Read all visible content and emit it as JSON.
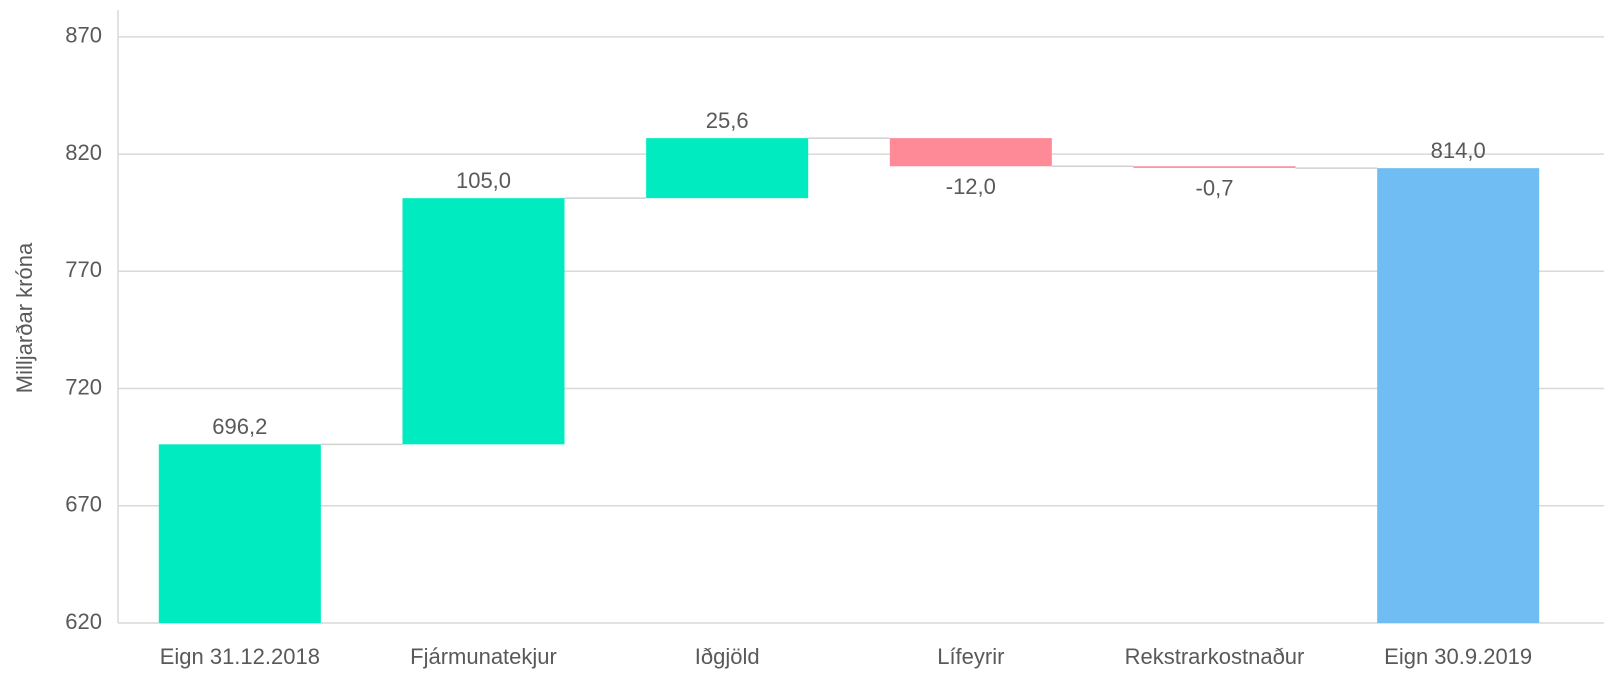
{
  "chart_data": {
    "type": "waterfall",
    "y_label": "Milljarðar króna",
    "categories": [
      "Eign 31.12.2018",
      "Fjármunatekjur",
      "Iðgjöld",
      "Lífeyrir",
      "Rekstrarkostnaður",
      "Eign 30.9.2019"
    ],
    "values": [
      696.2,
      105.0,
      25.6,
      -12.0,
      -0.7,
      814.0
    ],
    "value_labels": [
      "696,2",
      "105,0",
      "25,6",
      "-12,0",
      "-0,7",
      "814,0"
    ],
    "measures": [
      "absolute",
      "relative",
      "relative",
      "relative",
      "relative",
      "total"
    ],
    "colors": [
      "#00ebc0",
      "#00ebc0",
      "#00ebc0",
      "#ff8a97",
      "#ff8a97",
      "#6fbdf2"
    ],
    "ylim": [
      620,
      880
    ],
    "yticks": [
      620,
      670,
      720,
      770,
      820,
      870
    ],
    "grid": true
  }
}
